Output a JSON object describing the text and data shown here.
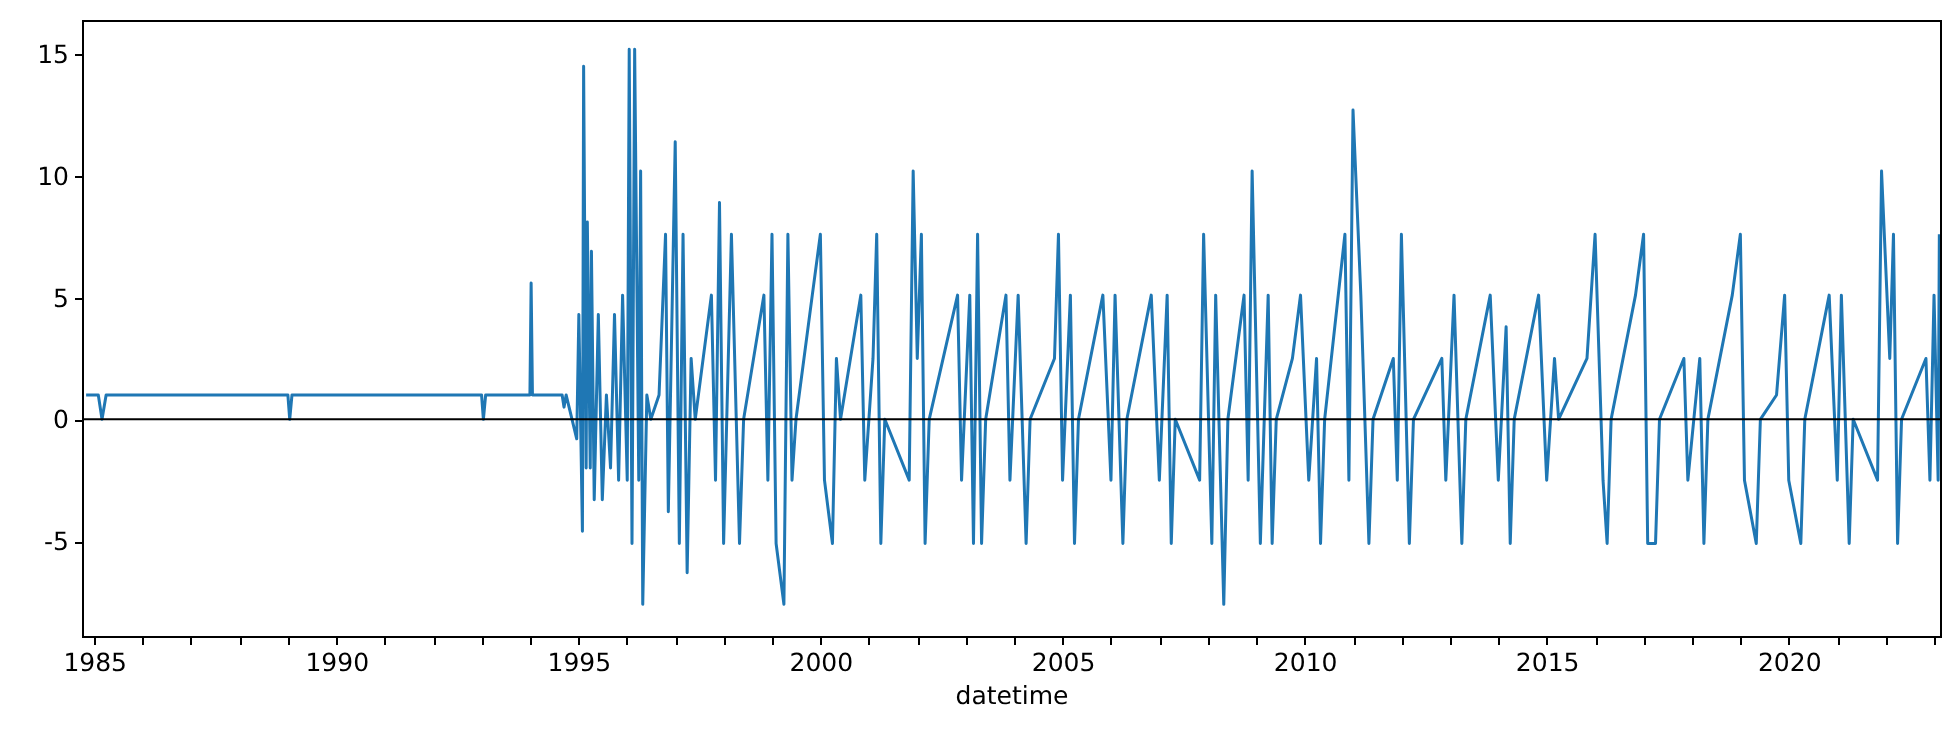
{
  "chart_data": {
    "type": "line",
    "xlabel": "datetime",
    "x": [
      "1984-11",
      "1985-02",
      "1985-03",
      "1985-04",
      "1989-01",
      "1989-01-15",
      "1989-02",
      "1993-01",
      "1993-01-15",
      "1993-02",
      "1994-01",
      "1994-01-10",
      "1994-01-20",
      "1994-09",
      "1994-09-15",
      "1994-10",
      "1994-12-20",
      "1995-01-05",
      "1995-02-01",
      "1995-02-10",
      "1995-03-01",
      "1995-03-10",
      "1995-04-01",
      "1995-04-10",
      "1995-05-01",
      "1995-06-01",
      "1995-07-01",
      "1995-08-01",
      "1995-09-01",
      "1995-10-01",
      "1995-11-01",
      "1995-12-01",
      "1996-01-05",
      "1996-01-20",
      "1996-02-10",
      "1996-03-01",
      "1996-04-01",
      "1996-04-15",
      "1996-05-01",
      "1996-06-01",
      "1996-07-01",
      "1996-09-01",
      "1996-10-20",
      "1996-11-10",
      "1997-01-01",
      "1997-02",
      "1997-03",
      "1997-04",
      "1997-05",
      "1997-06",
      "1997-10",
      "1997-11",
      "1997-12",
      "1998-01",
      "1998-03",
      "1998-05",
      "1998-06",
      "1998-11",
      "1998-12",
      "1999-01",
      "1999-02",
      "1999-04",
      "1999-05",
      "1999-06",
      "1999-07",
      "1999-11",
      "2000-01",
      "2000-02",
      "2000-04",
      "2000-05",
      "2000-06",
      "2000-11",
      "2000-12",
      "2001-02",
      "2001-03",
      "2001-04",
      "2001-05",
      "2001-11",
      "2001-12",
      "2002-01",
      "2002-02",
      "2002-03",
      "2002-04",
      "2002-11",
      "2002-12",
      "2003-02",
      "2003-03",
      "2003-04",
      "2003-05",
      "2003-06",
      "2003-11",
      "2003-12",
      "2004-02",
      "2004-04",
      "2004-05",
      "2004-11",
      "2004-12",
      "2005-01",
      "2005-03",
      "2005-04",
      "2005-05",
      "2005-11",
      "2006-01",
      "2006-02",
      "2006-04",
      "2006-05",
      "2006-11",
      "2007-01",
      "2007-03",
      "2007-04",
      "2007-05",
      "2007-11",
      "2007-12",
      "2008-02",
      "2008-03",
      "2008-05",
      "2008-06",
      "2008-10",
      "2008-11",
      "2008-12",
      "2009-02",
      "2009-04",
      "2009-05",
      "2009-06",
      "2009-10",
      "2009-12",
      "2010-02",
      "2010-04",
      "2010-05",
      "2010-06",
      "2010-11",
      "2010-12",
      "2011-01",
      "2011-03",
      "2011-05",
      "2011-06",
      "2011-11",
      "2011-12",
      "2012-01",
      "2012-03",
      "2012-04",
      "2012-11",
      "2012-12",
      "2013-02",
      "2013-04",
      "2013-05",
      "2013-11",
      "2014-01",
      "2014-03",
      "2014-04",
      "2014-05",
      "2014-11",
      "2015-01",
      "2015-03",
      "2015-04",
      "2015-11",
      "2016-01",
      "2016-03",
      "2016-04",
      "2016-05",
      "2016-11",
      "2017-01",
      "2017-02",
      "2017-04",
      "2017-05",
      "2017-11",
      "2017-12",
      "2018-03",
      "2018-04",
      "2018-05",
      "2018-11",
      "2019-01",
      "2019-02",
      "2019-05",
      "2019-06",
      "2019-10",
      "2019-12",
      "2020-01",
      "2020-04",
      "2020-05",
      "2020-11",
      "2021-01",
      "2021-02",
      "2021-04",
      "2021-05",
      "2021-11",
      "2021-12",
      "2022-02",
      "2022-03",
      "2022-04",
      "2022-05",
      "2022-11",
      "2022-12",
      "2023-01",
      "2023-02",
      "2023-02-10"
    ],
    "series": [
      {
        "color": "#1f77b4",
        "values": [
          1.0,
          1.0,
          0,
          1.0,
          1.0,
          0,
          1.0,
          1.0,
          0,
          1.0,
          1.0,
          5.6,
          1.0,
          1.0,
          0.5,
          1.0,
          -0.8,
          4.3,
          -4.6,
          14.5,
          -2.0,
          8.1,
          -2.0,
          6.9,
          -3.3,
          4.3,
          -3.3,
          1.0,
          -2.0,
          4.3,
          -2.5,
          5.1,
          -2.5,
          15.2,
          -5.1,
          15.2,
          -2.5,
          10.2,
          -7.6,
          1.0,
          0,
          1.0,
          7.6,
          -3.8,
          11.4,
          -5.1,
          7.6,
          -6.3,
          2.5,
          0,
          5.1,
          -2.5,
          8.9,
          -5.1,
          7.6,
          -5.1,
          0,
          5.1,
          -2.5,
          7.6,
          -5.1,
          -7.6,
          7.6,
          -2.5,
          0,
          5.1,
          7.6,
          -2.5,
          -5.1,
          2.5,
          0,
          5.1,
          -2.5,
          2.5,
          7.6,
          -5.1,
          0,
          -2.5,
          10.2,
          2.5,
          7.6,
          -5.1,
          0,
          5.1,
          -2.5,
          5.1,
          -5.1,
          7.6,
          -5.1,
          0,
          5.1,
          -2.5,
          5.1,
          -5.1,
          0,
          2.5,
          7.6,
          -2.5,
          5.1,
          -5.1,
          0,
          5.1,
          -2.5,
          5.1,
          -5.1,
          0,
          5.1,
          -2.5,
          5.1,
          -5.1,
          0,
          -2.5,
          7.6,
          -5.1,
          5.1,
          -7.6,
          0,
          5.1,
          -2.5,
          10.2,
          -5.1,
          5.1,
          -5.1,
          0,
          2.5,
          5.1,
          -2.5,
          2.5,
          -5.1,
          0,
          7.6,
          -2.5,
          12.7,
          5.1,
          -5.1,
          0,
          2.5,
          -2.5,
          7.6,
          -5.1,
          0,
          2.5,
          -2.5,
          5.1,
          -5.1,
          0,
          5.1,
          -2.5,
          3.8,
          -5.1,
          0,
          5.1,
          -2.5,
          2.5,
          0,
          2.5,
          7.6,
          -2.5,
          -5.1,
          0,
          5.1,
          7.6,
          -5.1,
          -5.1,
          0,
          2.5,
          -2.5,
          2.5,
          -5.1,
          0,
          5.1,
          7.6,
          -2.5,
          -5.1,
          0,
          1.0,
          5.1,
          -2.5,
          -5.1,
          0,
          5.1,
          -2.5,
          5.1,
          -5.1,
          0,
          -2.5,
          10.2,
          2.5,
          7.6,
          -5.1,
          0,
          2.5,
          -2.5,
          5.1,
          -2.5,
          7.6
        ]
      }
    ],
    "xlim": [
      "1984-10",
      "2023-02-15"
    ],
    "xticks": [
      "1985",
      {
        "value": "1986",
        "label": null
      },
      {
        "value": "1987",
        "label": null
      },
      {
        "value": "1988",
        "label": null
      },
      {
        "value": "1989",
        "label": null
      },
      "1990",
      {
        "value": "1991",
        "label": null
      },
      {
        "value": "1992",
        "label": null
      },
      {
        "value": "1993",
        "label": null
      },
      {
        "value": "1994",
        "label": null
      },
      "1995",
      {
        "value": "1996",
        "label": null
      },
      {
        "value": "1997",
        "label": null
      },
      {
        "value": "1998",
        "label": null
      },
      {
        "value": "1999",
        "label": null
      },
      "2000",
      {
        "value": "2001",
        "label": null
      },
      {
        "value": "2002",
        "label": null
      },
      {
        "value": "2003",
        "label": null
      },
      {
        "value": "2004",
        "label": null
      },
      "2005",
      {
        "value": "2006",
        "label": null
      },
      {
        "value": "2007",
        "label": null
      },
      {
        "value": "2008",
        "label": null
      },
      {
        "value": "2009",
        "label": null
      },
      "2010",
      {
        "value": "2011",
        "label": null
      },
      {
        "value": "2012",
        "label": null
      },
      {
        "value": "2013",
        "label": null
      },
      {
        "value": "2014",
        "label": null
      },
      "2015",
      {
        "value": "2016",
        "label": null
      },
      {
        "value": "2017",
        "label": null
      },
      {
        "value": "2018",
        "label": null
      },
      {
        "value": "2019",
        "label": null
      },
      "2020",
      {
        "value": "2021",
        "label": null
      },
      {
        "value": "2022",
        "label": null
      },
      {
        "value": "2023",
        "label": null
      }
    ],
    "ylim": [
      -8.9,
      16.4
    ],
    "yticks": [
      -5,
      0,
      5,
      10,
      15
    ],
    "ref_lines": [
      {
        "axis": "y",
        "value": 0,
        "color": "#000000"
      }
    ],
    "grid": false
  }
}
